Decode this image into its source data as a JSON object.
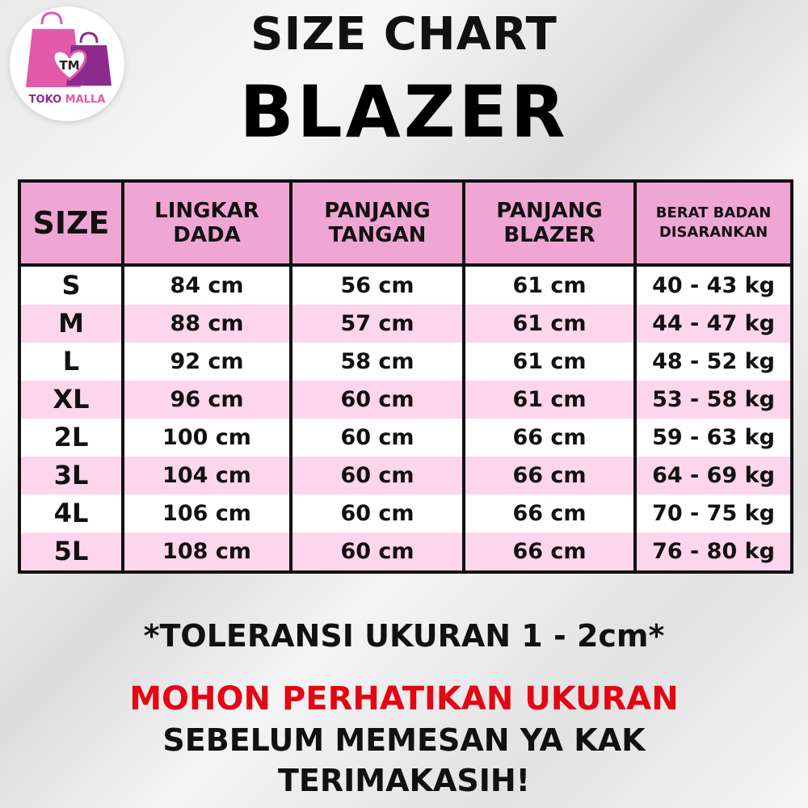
{
  "brand": {
    "name_part1": "TOKO",
    "name_part2": "MALLA",
    "monogram": "TM",
    "colors": {
      "pink": "#e25aa9",
      "purple": "#8e2a8e"
    }
  },
  "header": {
    "title_line1": "SIZE CHART",
    "title_line2": "BLAZER"
  },
  "table": {
    "columns": [
      "SIZE",
      "LINGKAR DADA",
      "PANJANG TANGAN",
      "PANJANG BLAZER",
      "BERAT BADAN DISARANKAN"
    ],
    "rows": [
      [
        "S",
        "84 cm",
        "56 cm",
        "61 cm",
        "40 - 43 kg"
      ],
      [
        "M",
        "88 cm",
        "57 cm",
        "61 cm",
        "44 - 47 kg"
      ],
      [
        "L",
        "92 cm",
        "58 cm",
        "61 cm",
        "48 - 52 kg"
      ],
      [
        "XL",
        "96 cm",
        "60 cm",
        "61 cm",
        "53 - 58 kg"
      ],
      [
        "2L",
        "100 cm",
        "60 cm",
        "66 cm",
        "59 - 63 kg"
      ],
      [
        "3L",
        "104 cm",
        "60 cm",
        "66 cm",
        "64 - 69 kg"
      ],
      [
        "4L",
        "106 cm",
        "60 cm",
        "66 cm",
        "70 - 75 kg"
      ],
      [
        "5L",
        "108 cm",
        "60 cm",
        "66 cm",
        "76 - 80 kg"
      ]
    ],
    "colors": {
      "header": "#f0a6d4",
      "alt_row": "#fdd5ec"
    }
  },
  "notes": {
    "tolerance": "*TOLERANSI UKURAN 1 - 2cm*",
    "warning": "MOHON PERHATIKAN UKURAN",
    "line2": "SEBELUM MEMESAN YA KAK",
    "line3": "TERIMAKASIH!",
    "warning_color": "#e30613"
  }
}
